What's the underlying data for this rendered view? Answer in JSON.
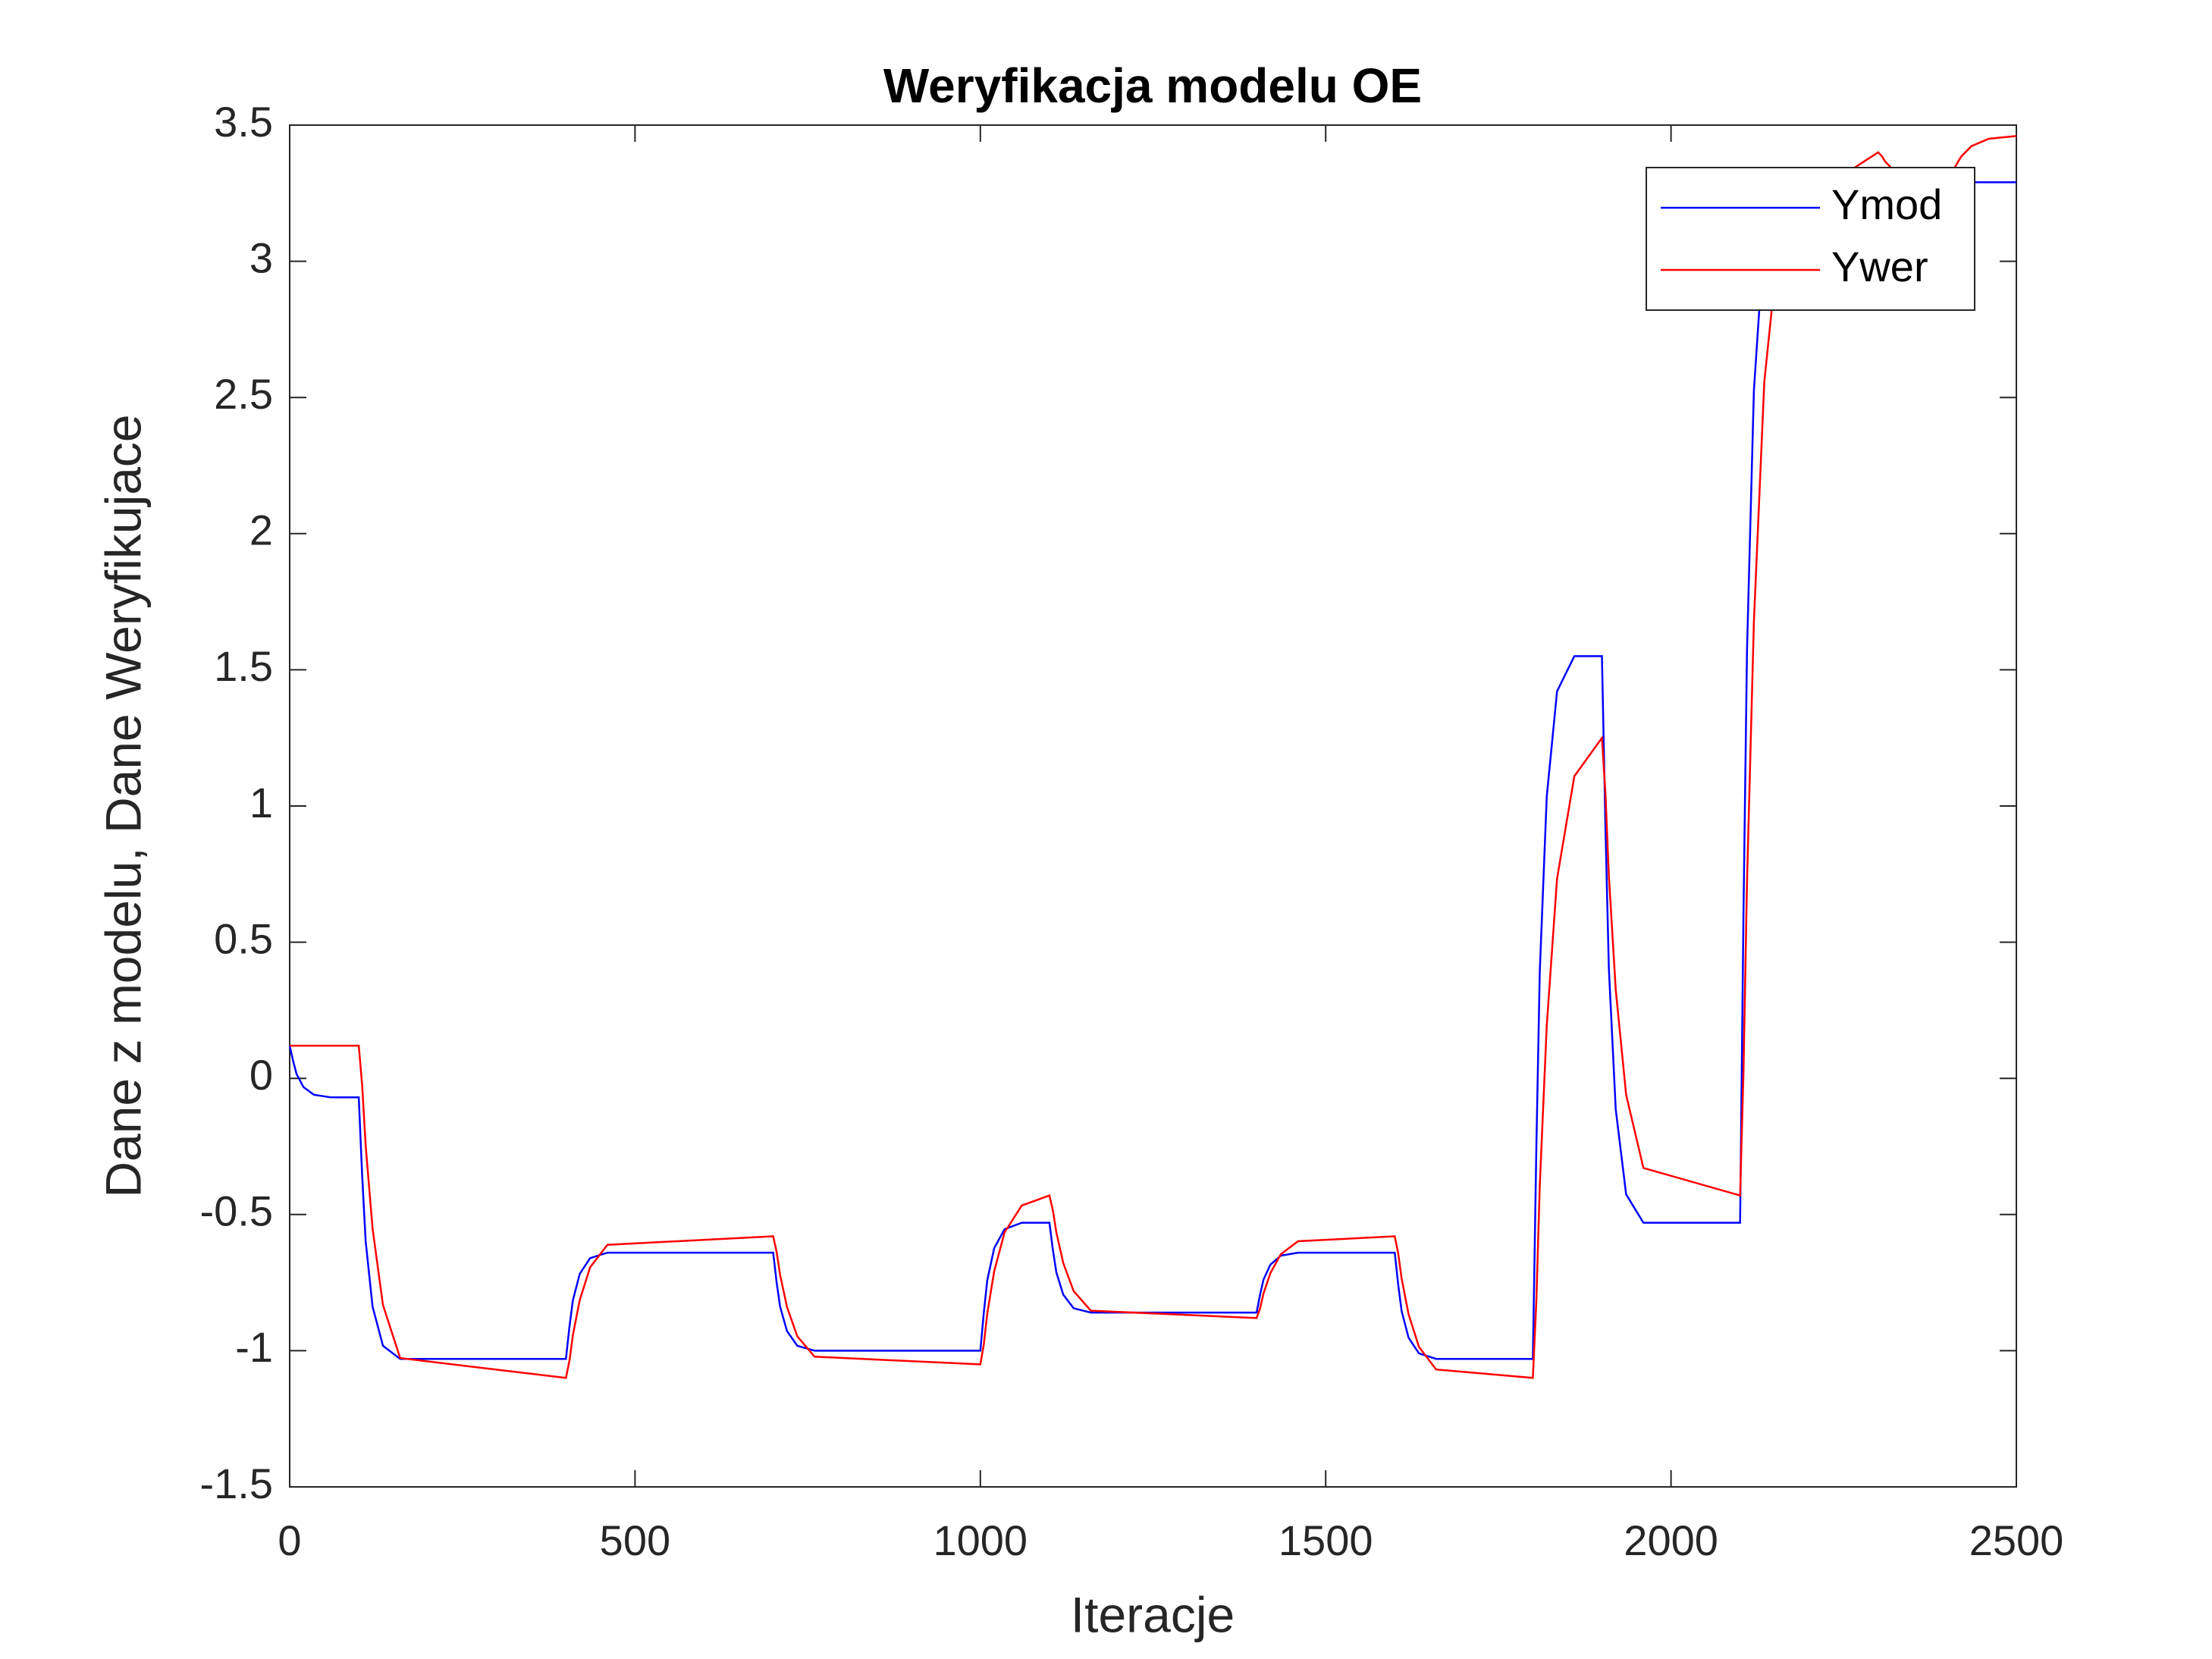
{
  "chart_data": {
    "type": "line",
    "title": "Weryfikacja modelu OE",
    "xlabel": "Iteracje",
    "ylabel": "Dane z modelu, Dane Weryfikujace",
    "x": [
      0,
      5,
      10,
      20,
      35,
      60,
      100,
      105,
      110,
      120,
      135,
      160,
      400,
      405,
      410,
      420,
      435,
      460,
      700,
      705,
      710,
      720,
      735,
      760,
      1000,
      1005,
      1010,
      1020,
      1035,
      1060,
      1100,
      1105,
      1110,
      1120,
      1135,
      1160,
      1400,
      1405,
      1410,
      1420,
      1435,
      1460,
      1600,
      1605,
      1610,
      1620,
      1635,
      1660,
      1800,
      1805,
      1810,
      1820,
      1835,
      1860,
      1900,
      1905,
      1910,
      1920,
      1935,
      1960,
      2100,
      2105,
      2110,
      2120,
      2135,
      2160,
      2300,
      2305,
      2310,
      2320,
      2335,
      2360,
      2400,
      2405,
      2410,
      2420,
      2435,
      2460,
      2500
    ],
    "series": [
      {
        "name": "Ymod",
        "color": "#0000ff",
        "values": [
          0.12,
          0.063,
          0.016,
          -0.032,
          -0.06,
          -0.07,
          -0.07,
          -0.358,
          -0.598,
          -0.838,
          -0.982,
          -1.03,
          -1.03,
          -0.913,
          -0.816,
          -0.718,
          -0.66,
          -0.64,
          -0.64,
          -0.748,
          -0.838,
          -0.928,
          -0.982,
          -1.0,
          -1.0,
          -0.859,
          -0.742,
          -0.624,
          -0.554,
          -0.53,
          -0.53,
          -0.629,
          -0.712,
          -0.794,
          -0.844,
          -0.86,
          -0.86,
          -0.794,
          -0.739,
          -0.684,
          -0.651,
          -0.64,
          -0.64,
          -0.757,
          -0.855,
          -0.952,
          -1.01,
          -1.03,
          -1.03,
          -0.256,
          0.389,
          1.034,
          1.421,
          1.55,
          1.55,
          0.926,
          0.406,
          -0.114,
          -0.426,
          -0.53,
          -0.53,
          0.616,
          1.571,
          2.526,
          3.099,
          3.29,
          3.29,
          3.29,
          3.29,
          3.29,
          3.29,
          3.29,
          3.29,
          3.29,
          3.29,
          3.29,
          3.29,
          3.29,
          3.29
        ]
      },
      {
        "name": "Ywer",
        "color": "#ff0000",
        "values": [
          0.12,
          0.12,
          0.12,
          0.12,
          0.12,
          0.12,
          0.12,
          -0.026,
          -0.246,
          -0.551,
          -0.832,
          -1.027,
          -1.1,
          -1.038,
          -0.944,
          -0.814,
          -0.694,
          -0.611,
          -0.58,
          -0.636,
          -0.721,
          -0.839,
          -0.947,
          -1.022,
          -1.05,
          -0.976,
          -0.864,
          -0.709,
          -0.566,
          -0.467,
          -0.43,
          -0.484,
          -0.565,
          -0.678,
          -0.781,
          -0.853,
          -0.88,
          -0.844,
          -0.79,
          -0.715,
          -0.646,
          -0.598,
          -0.58,
          -0.642,
          -0.736,
          -0.866,
          -0.986,
          -1.069,
          -1.1,
          -0.818,
          -0.395,
          0.193,
          0.733,
          1.109,
          1.25,
          1.048,
          0.746,
          0.326,
          -0.06,
          -0.329,
          -0.43,
          0.03,
          0.719,
          1.677,
          2.557,
          3.17,
          3.4,
          3.387,
          3.367,
          3.34,
          3.314,
          3.297,
          3.29,
          3.31,
          3.341,
          3.384,
          3.423,
          3.45,
          3.46
        ]
      }
    ],
    "xlim": [
      0,
      2500
    ],
    "xticks": [
      0,
      500,
      1000,
      1500,
      2000,
      2500
    ],
    "ylim": [
      -1.5,
      3.5
    ],
    "yticks": [
      -1.5,
      -1,
      -0.5,
      0,
      0.5,
      1,
      1.5,
      2,
      2.5,
      3,
      3.5
    ],
    "grid": false,
    "legend": "northeast"
  }
}
